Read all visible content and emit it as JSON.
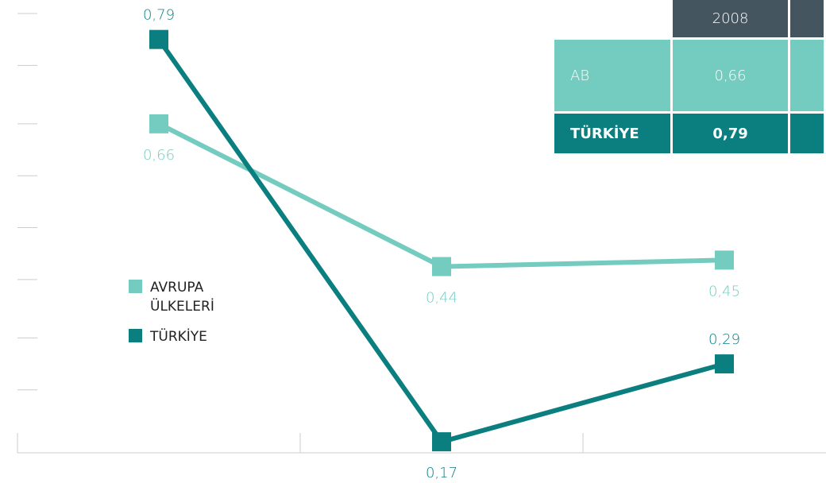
{
  "chart_data": {
    "type": "line",
    "categories": [
      null,
      null,
      null
    ],
    "series": [
      {
        "name": "AVRUPA ÜLKELERİ",
        "color": "#74cbbf",
        "values": [
          0.66,
          0.44,
          0.45
        ],
        "value_labels": [
          "0,66",
          "0,44",
          "0,45"
        ]
      },
      {
        "name": "TÜRKİYE",
        "color": "#0b7f80",
        "values": [
          0.79,
          0.17,
          0.29
        ],
        "value_labels": [
          "0,79",
          "0,17",
          "0,29"
        ]
      }
    ],
    "ylim": [
      0.153,
      0.83
    ],
    "yticks": [
      0.25,
      0.33,
      0.42,
      0.5,
      0.58,
      0.66,
      0.75,
      0.83
    ]
  },
  "table": {
    "header": [
      "2008"
    ],
    "rows": [
      [
        "AB",
        "0,66"
      ],
      [
        "TÜRKİYE",
        "0,79"
      ]
    ]
  }
}
